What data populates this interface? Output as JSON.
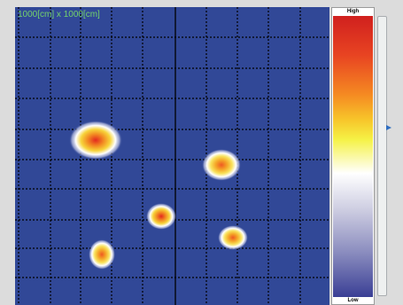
{
  "view": {
    "area_label": "1000[cm] x 1000[cm]"
  },
  "scale": {
    "high_label": "High",
    "low_label": "Low",
    "marker_level": 0.63,
    "slider_level": 0.6
  },
  "colors": {
    "background": "#314897",
    "grid": "#000000",
    "label": "#74d26b",
    "marker": "#2f6ec0"
  },
  "hotspots": [
    {
      "name": "hotspot-1",
      "intensity": "high"
    },
    {
      "name": "hotspot-2",
      "intensity": "medium"
    },
    {
      "name": "hotspot-3",
      "intensity": "high"
    },
    {
      "name": "hotspot-4",
      "intensity": "medium"
    },
    {
      "name": "hotspot-5",
      "intensity": "medium"
    }
  ]
}
